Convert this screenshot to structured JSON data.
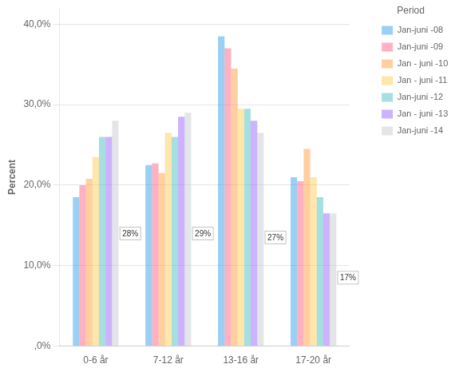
{
  "chart_data": {
    "type": "bar",
    "categories": [
      "0-6 år",
      "7-12 år",
      "13-16 år",
      "17-20 år"
    ],
    "series": [
      {
        "name": "Jan-juni -08",
        "values": [
          18.5,
          22.5,
          38.5,
          21.0
        ]
      },
      {
        "name": "Jan-juni -09",
        "values": [
          20.0,
          22.7,
          37.0,
          20.5
        ]
      },
      {
        "name": "Jan - juni -10",
        "values": [
          20.8,
          21.5,
          34.5,
          24.5
        ]
      },
      {
        "name": "Jan - juni -11",
        "values": [
          23.5,
          26.5,
          29.5,
          21.0
        ]
      },
      {
        "name": "Jan-juni -12",
        "values": [
          26.0,
          26.0,
          29.5,
          18.5
        ]
      },
      {
        "name": "Jan - juni -13",
        "values": [
          26.0,
          28.5,
          28.0,
          16.5
        ]
      },
      {
        "name": "Jan-juni -14",
        "values": [
          28.0,
          29.0,
          26.5,
          16.5
        ]
      }
    ],
    "annotations": [
      {
        "text": "28%",
        "category": "0-6 år",
        "y": 14.0
      },
      {
        "text": "29%",
        "category": "7-12 år",
        "y": 14.0
      },
      {
        "text": "27%",
        "category": "13-16 år",
        "y": 13.5
      },
      {
        "text": "17%",
        "category": "17-20 år",
        "y": 8.5
      }
    ],
    "ylabel": "Percent",
    "ylim": [
      0,
      42
    ],
    "yticks": [
      {
        "value": 0,
        "label": ",0%"
      },
      {
        "value": 10,
        "label": "10,0%"
      },
      {
        "value": 20,
        "label": "20,0%"
      },
      {
        "value": 30,
        "label": "30,0%"
      },
      {
        "value": 40,
        "label": "40,0%"
      }
    ],
    "legend_title": "Period",
    "legend": "right",
    "grid": true
  }
}
